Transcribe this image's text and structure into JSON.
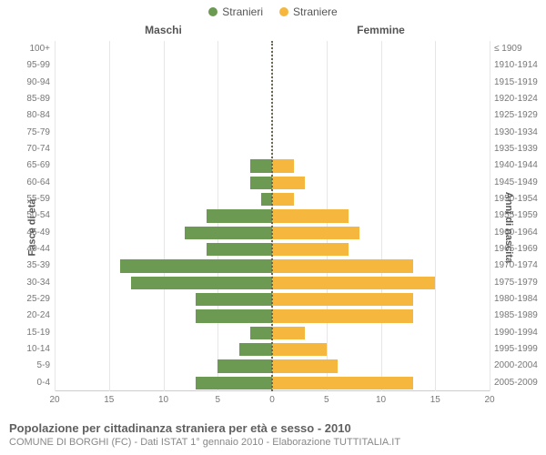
{
  "legend": {
    "male": {
      "label": "Stranieri",
      "color": "#6c9a52"
    },
    "female": {
      "label": "Straniere",
      "color": "#f6b73e"
    }
  },
  "columns": {
    "left": "Maschi",
    "right": "Femmine"
  },
  "y_axis_left_title": "Fasce di età",
  "y_axis_right_title": "Anni di nascita",
  "chart": {
    "type": "population-pyramid",
    "xmax": 20,
    "xtick_step": 5,
    "background_color": "#ffffff",
    "grid_color": "#e6e6e6",
    "centerline_color": "#6b6651",
    "left_bar_color": "#6c9a52",
    "right_bar_color": "#f6b73e",
    "label_fontsize": 10,
    "label_color": "#777777",
    "age_groups": [
      "100+",
      "95-99",
      "90-94",
      "85-89",
      "80-84",
      "75-79",
      "70-74",
      "65-69",
      "60-64",
      "55-59",
      "50-54",
      "45-49",
      "40-44",
      "35-39",
      "30-34",
      "25-29",
      "20-24",
      "15-19",
      "10-14",
      "5-9",
      "0-4"
    ],
    "birth_years": [
      "≤ 1909",
      "1910-1914",
      "1915-1919",
      "1920-1924",
      "1925-1929",
      "1930-1934",
      "1935-1939",
      "1940-1944",
      "1945-1949",
      "1950-1954",
      "1955-1959",
      "1960-1964",
      "1965-1969",
      "1970-1974",
      "1975-1979",
      "1980-1984",
      "1985-1989",
      "1990-1994",
      "1995-1999",
      "2000-2004",
      "2005-2009"
    ],
    "male_values": [
      0,
      0,
      0,
      0,
      0,
      0,
      0,
      2,
      2,
      1,
      6,
      8,
      6,
      14,
      13,
      7,
      7,
      2,
      3,
      5,
      7
    ],
    "female_values": [
      0,
      0,
      0,
      0,
      0,
      0,
      0,
      2,
      3,
      2,
      7,
      8,
      7,
      13,
      15,
      13,
      13,
      3,
      5,
      6,
      13
    ]
  },
  "footer": {
    "title": "Popolazione per cittadinanza straniera per età e sesso - 2010",
    "subtitle": "COMUNE DI BORGHI (FC) - Dati ISTAT 1° gennaio 2010 - Elaborazione TUTTITALIA.IT"
  }
}
